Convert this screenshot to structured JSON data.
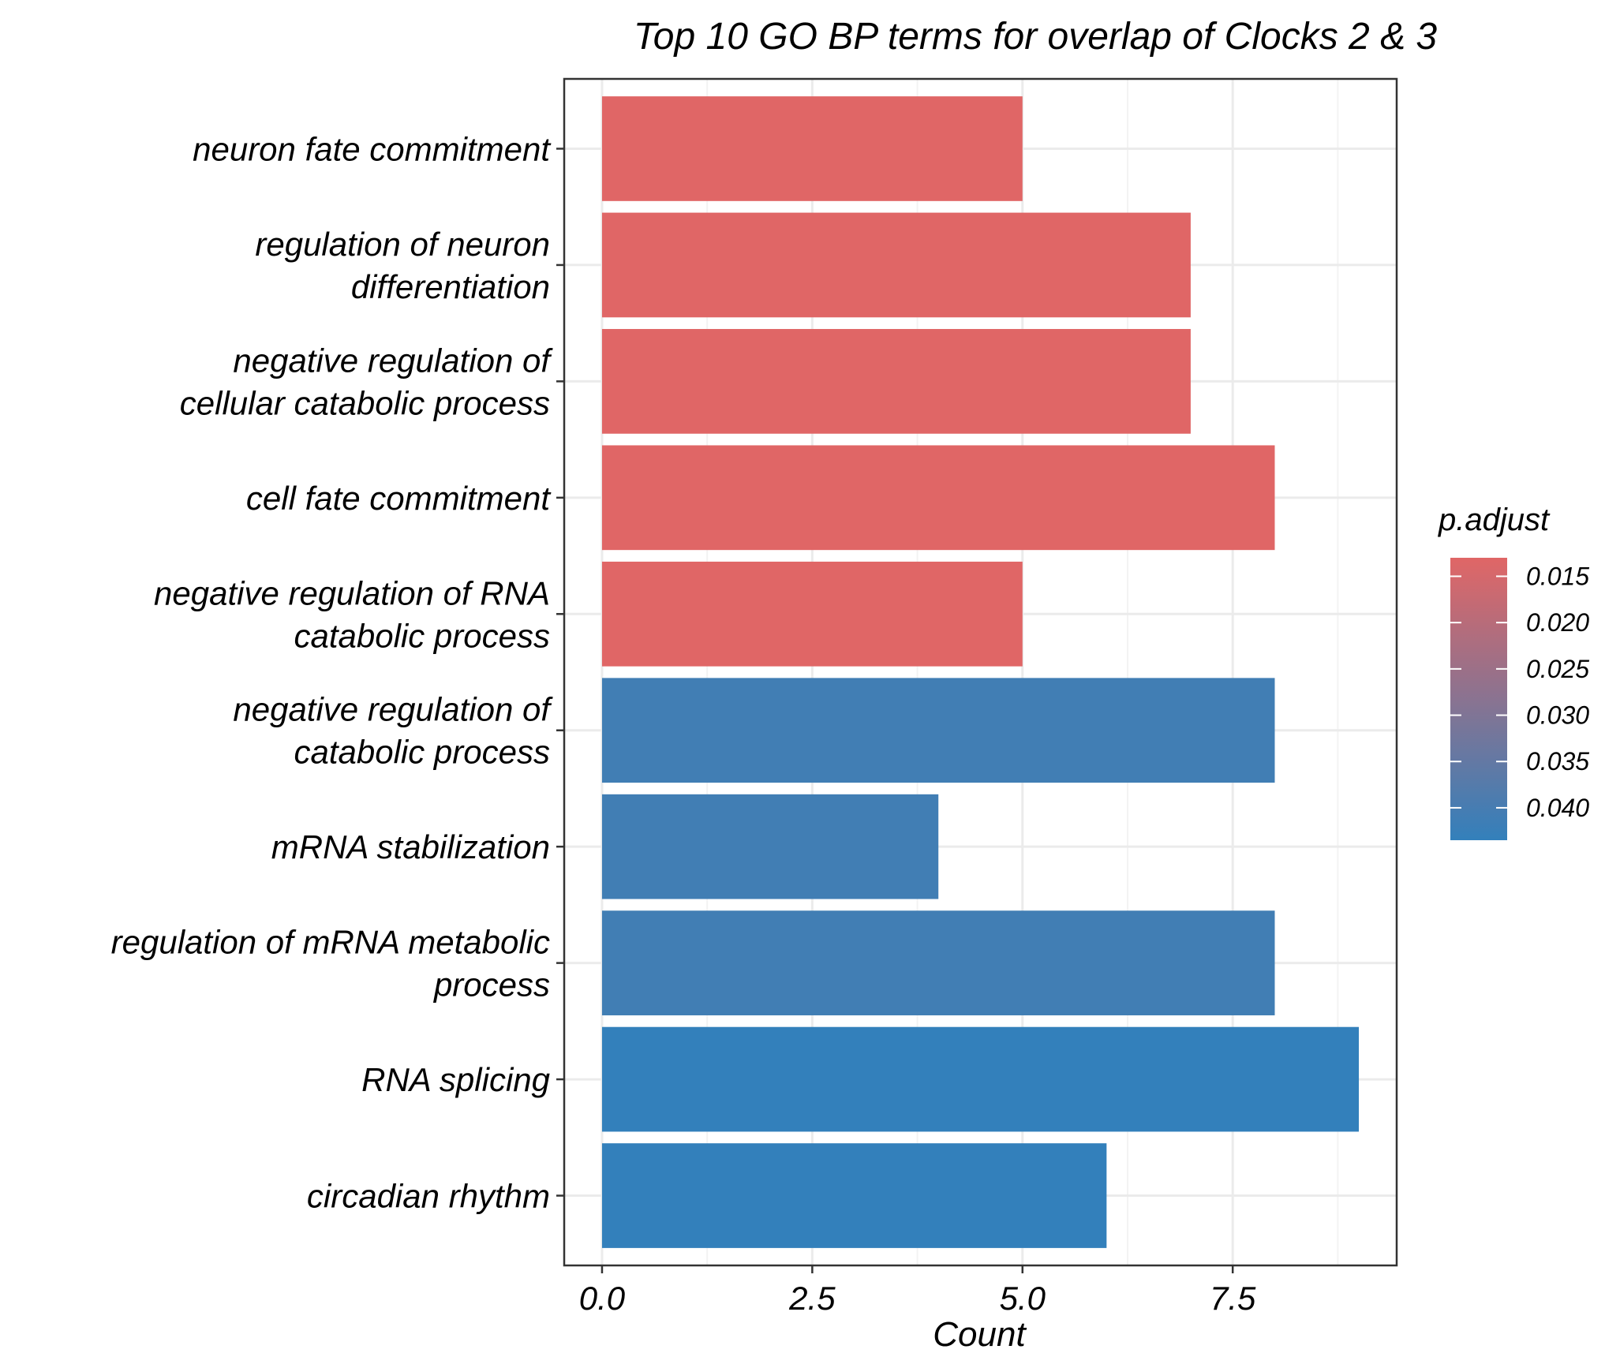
{
  "chart_data": {
    "type": "bar",
    "orientation": "horizontal",
    "title": "Top 10 GO BP terms for overlap of Clocks 2 & 3",
    "xlabel": "Count",
    "ylabel": "",
    "xlim": [
      -0.45,
      9.45
    ],
    "xticks": [
      0.0,
      2.5,
      5.0,
      7.5
    ],
    "xtick_labels": [
      "0.0",
      "2.5",
      "5.0",
      "7.5"
    ],
    "grid": true,
    "categories": [
      [
        "neuron fate commitment"
      ],
      [
        "regulation of neuron",
        "differentiation"
      ],
      [
        "negative regulation of",
        "cellular catabolic process"
      ],
      [
        "cell fate commitment"
      ],
      [
        "negative regulation of RNA",
        "catabolic process"
      ],
      [
        "negative regulation of",
        "catabolic process"
      ],
      [
        "mRNA stabilization"
      ],
      [
        "regulation of mRNA metabolic",
        "process"
      ],
      [
        "RNA splicing"
      ],
      [
        "circadian rhythm"
      ]
    ],
    "values": [
      5,
      7,
      7,
      8,
      5,
      8,
      4,
      8,
      9,
      6
    ],
    "p_adjust": [
      0.013,
      0.013,
      0.013,
      0.013,
      0.013,
      0.041,
      0.041,
      0.041,
      0.0435,
      0.0435
    ],
    "legend": {
      "title": "p.adjust",
      "placement": "right",
      "ticks": [
        0.015,
        0.02,
        0.025,
        0.03,
        0.035,
        0.04
      ],
      "tick_labels": [
        "0.015",
        "0.020",
        "0.025",
        "0.030",
        "0.035",
        "0.040"
      ],
      "range": [
        0.013,
        0.0435
      ],
      "low_color": "#E06666",
      "high_color": "#3380BB"
    }
  }
}
